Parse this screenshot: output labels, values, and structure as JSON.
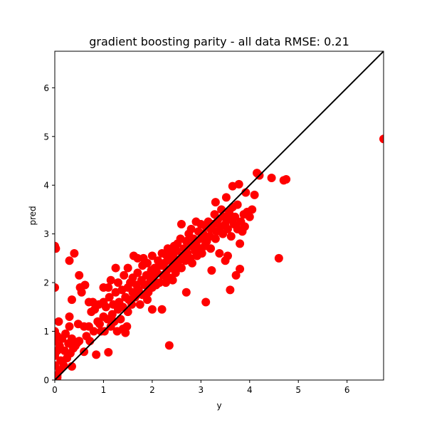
{
  "chart_data": {
    "type": "scatter",
    "title": "gradient boosting parity - all data RMSE: 0.21",
    "xlabel": "y",
    "ylabel": "pred",
    "xlim": [
      0,
      6.75
    ],
    "ylim": [
      0,
      6.75
    ],
    "xticks": [
      0,
      1,
      2,
      3,
      4,
      5,
      6
    ],
    "yticks": [
      0,
      1,
      2,
      3,
      4,
      5,
      6
    ],
    "grid": false,
    "point_color": "#ff0000",
    "line_color": "#000000",
    "reference_line": {
      "x": [
        0,
        6.75
      ],
      "y": [
        0,
        6.75
      ]
    },
    "points": [
      [
        0.0,
        0.3
      ],
      [
        0.0,
        0.5
      ],
      [
        0.0,
        0.8
      ],
      [
        0.0,
        1.0
      ],
      [
        0.0,
        1.9
      ],
      [
        0.0,
        2.75
      ],
      [
        0.02,
        2.7
      ],
      [
        0.05,
        0.05
      ],
      [
        0.05,
        0.1
      ],
      [
        0.05,
        0.6
      ],
      [
        0.05,
        0.9
      ],
      [
        0.08,
        1.2
      ],
      [
        0.1,
        0.2
      ],
      [
        0.1,
        0.7
      ],
      [
        0.12,
        0.4
      ],
      [
        0.15,
        0.85
      ],
      [
        0.18,
        0.3
      ],
      [
        0.2,
        0.6
      ],
      [
        0.22,
        0.95
      ],
      [
        0.25,
        0.45
      ],
      [
        0.28,
        0.75
      ],
      [
        0.3,
        1.3
      ],
      [
        0.3,
        1.1
      ],
      [
        0.3,
        2.45
      ],
      [
        0.32,
        0.55
      ],
      [
        0.35,
        0.28
      ],
      [
        0.35,
        0.85
      ],
      [
        0.35,
        1.65
      ],
      [
        0.38,
        0.65
      ],
      [
        0.4,
        2.6
      ],
      [
        0.42,
        0.7
      ],
      [
        0.45,
        0.75
      ],
      [
        0.48,
        1.15
      ],
      [
        0.5,
        0.8
      ],
      [
        0.5,
        2.15
      ],
      [
        0.52,
        1.9
      ],
      [
        0.55,
        1.8
      ],
      [
        0.6,
        0.58
      ],
      [
        0.6,
        1.1
      ],
      [
        0.62,
        1.95
      ],
      [
        0.65,
        0.9
      ],
      [
        0.7,
        1.1
      ],
      [
        0.7,
        1.6
      ],
      [
        0.72,
        0.8
      ],
      [
        0.75,
        1.4
      ],
      [
        0.78,
        1.6
      ],
      [
        0.8,
        1.0
      ],
      [
        0.82,
        1.45
      ],
      [
        0.85,
        0.52
      ],
      [
        0.88,
        1.2
      ],
      [
        0.9,
        1.55
      ],
      [
        0.92,
        1.15
      ],
      [
        0.95,
        1.0
      ],
      [
        1.0,
        1.3
      ],
      [
        1.0,
        1.6
      ],
      [
        1.0,
        1.9
      ],
      [
        1.02,
        1.0
      ],
      [
        1.05,
        1.5
      ],
      [
        1.08,
        1.25
      ],
      [
        1.1,
        1.9
      ],
      [
        1.1,
        0.57
      ],
      [
        1.12,
        1.7
      ],
      [
        1.15,
        1.1
      ],
      [
        1.15,
        2.05
      ],
      [
        1.18,
        1.35
      ],
      [
        1.2,
        1.55
      ],
      [
        1.22,
        1.2
      ],
      [
        1.25,
        1.8
      ],
      [
        1.25,
        2.3
      ],
      [
        1.28,
        1.0
      ],
      [
        1.3,
        1.45
      ],
      [
        1.3,
        2.0
      ],
      [
        1.32,
        1.6
      ],
      [
        1.35,
        1.25
      ],
      [
        1.38,
        1.85
      ],
      [
        1.4,
        1.05
      ],
      [
        1.4,
        1.5
      ],
      [
        1.42,
        2.15
      ],
      [
        1.45,
        1.7
      ],
      [
        1.45,
        0.97
      ],
      [
        1.48,
        1.1
      ],
      [
        1.5,
        1.4
      ],
      [
        1.5,
        1.9
      ],
      [
        1.5,
        2.3
      ],
      [
        1.52,
        1.65
      ],
      [
        1.55,
        2.0
      ],
      [
        1.58,
        1.55
      ],
      [
        1.6,
        1.8
      ],
      [
        1.6,
        2.1
      ],
      [
        1.62,
        2.55
      ],
      [
        1.65,
        1.7
      ],
      [
        1.68,
        1.95
      ],
      [
        1.7,
        2.5
      ],
      [
        1.7,
        2.2
      ],
      [
        1.72,
        1.85
      ],
      [
        1.75,
        1.55
      ],
      [
        1.78,
        2.05
      ],
      [
        1.8,
        1.75
      ],
      [
        1.8,
        2.35
      ],
      [
        1.82,
        2.5
      ],
      [
        1.85,
        1.95
      ],
      [
        1.88,
        2.15
      ],
      [
        1.9,
        1.65
      ],
      [
        1.9,
        2.4
      ],
      [
        1.92,
        1.8
      ],
      [
        1.95,
        2.0
      ],
      [
        1.98,
        2.25
      ],
      [
        2.0,
        1.45
      ],
      [
        2.0,
        1.9
      ],
      [
        2.0,
        2.55
      ],
      [
        2.02,
        2.1
      ],
      [
        2.05,
        2.3
      ],
      [
        2.08,
        1.95
      ],
      [
        2.1,
        2.2
      ],
      [
        2.12,
        2.45
      ],
      [
        2.15,
        2.0
      ],
      [
        2.18,
        2.35
      ],
      [
        2.2,
        1.45
      ],
      [
        2.2,
        2.6
      ],
      [
        2.22,
        2.15
      ],
      [
        2.25,
        2.4
      ],
      [
        2.28,
        2.0
      ],
      [
        2.3,
        2.55
      ],
      [
        2.3,
        2.25
      ],
      [
        2.32,
        2.7
      ],
      [
        2.35,
        0.71
      ],
      [
        2.35,
        2.1
      ],
      [
        2.38,
        2.45
      ],
      [
        2.4,
        2.6
      ],
      [
        2.4,
        2.3
      ],
      [
        2.42,
        2.05
      ],
      [
        2.45,
        2.75
      ],
      [
        2.45,
        2.5
      ],
      [
        2.48,
        2.2
      ],
      [
        2.5,
        2.65
      ],
      [
        2.5,
        2.35
      ],
      [
        2.52,
        2.8
      ],
      [
        2.55,
        2.45
      ],
      [
        2.58,
        2.9
      ],
      [
        2.6,
        2.3
      ],
      [
        2.6,
        3.2
      ],
      [
        2.62,
        2.55
      ],
      [
        2.65,
        2.7
      ],
      [
        2.68,
        2.45
      ],
      [
        2.7,
        1.8
      ],
      [
        2.7,
        2.85
      ],
      [
        2.72,
        2.6
      ],
      [
        2.75,
        3.0
      ],
      [
        2.78,
        2.5
      ],
      [
        2.8,
        2.75
      ],
      [
        2.8,
        3.1
      ],
      [
        2.82,
        2.4
      ],
      [
        2.85,
        2.9
      ],
      [
        2.88,
        2.65
      ],
      [
        2.9,
        3.25
      ],
      [
        2.9,
        2.8
      ],
      [
        2.92,
        2.55
      ],
      [
        2.95,
        3.05
      ],
      [
        2.98,
        2.7
      ],
      [
        3.0,
        2.9
      ],
      [
        3.0,
        3.2
      ],
      [
        3.02,
        2.6
      ],
      [
        3.05,
        3.0
      ],
      [
        3.08,
        2.75
      ],
      [
        3.1,
        1.6
      ],
      [
        3.1,
        3.15
      ],
      [
        3.12,
        2.85
      ],
      [
        3.15,
        3.25
      ],
      [
        3.18,
        2.95
      ],
      [
        3.2,
        2.7
      ],
      [
        3.2,
        3.1
      ],
      [
        3.22,
        2.25
      ],
      [
        3.25,
        3.2
      ],
      [
        3.28,
        3.4
      ],
      [
        3.3,
        2.9
      ],
      [
        3.3,
        3.65
      ],
      [
        3.32,
        3.05
      ],
      [
        3.35,
        3.3
      ],
      [
        3.38,
        2.6
      ],
      [
        3.4,
        3.15
      ],
      [
        3.42,
        3.5
      ],
      [
        3.45,
        3.0
      ],
      [
        3.48,
        3.35
      ],
      [
        3.5,
        3.2
      ],
      [
        3.5,
        2.45
      ],
      [
        3.52,
        3.75
      ],
      [
        3.55,
        3.1
      ],
      [
        3.55,
        2.55
      ],
      [
        3.58,
        3.45
      ],
      [
        3.6,
        1.85
      ],
      [
        3.6,
        3.3
      ],
      [
        3.62,
        2.95
      ],
      [
        3.65,
        3.55
      ],
      [
        3.65,
        3.98
      ],
      [
        3.68,
        3.2
      ],
      [
        3.7,
        3.35
      ],
      [
        3.72,
        2.15
      ],
      [
        3.75,
        3.6
      ],
      [
        3.75,
        3.1
      ],
      [
        3.78,
        4.02
      ],
      [
        3.8,
        2.28
      ],
      [
        3.8,
        2.8
      ],
      [
        3.82,
        3.25
      ],
      [
        3.85,
        3.05
      ],
      [
        3.88,
        3.4
      ],
      [
        3.9,
        3.15
      ],
      [
        3.92,
        3.85
      ],
      [
        3.95,
        3.45
      ],
      [
        4.0,
        3.35
      ],
      [
        4.05,
        3.5
      ],
      [
        4.1,
        3.8
      ],
      [
        4.15,
        4.25
      ],
      [
        4.2,
        4.2
      ],
      [
        4.45,
        4.15
      ],
      [
        4.6,
        2.5
      ],
      [
        4.7,
        4.1
      ],
      [
        4.75,
        4.12
      ],
      [
        6.75,
        4.95
      ]
    ]
  }
}
